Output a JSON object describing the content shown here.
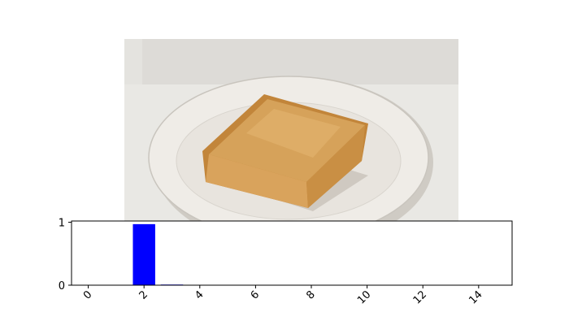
{
  "image": {
    "subject": "toast-on-plate-photo",
    "colors": {
      "background": "#e6e4e0",
      "box": "#dcdad6",
      "plate": "#eeebe6",
      "plate_rim": "#c8c4bd",
      "toast_crust": "#c98e3d",
      "toast_top": "#d9a55a"
    }
  },
  "chart_data": {
    "type": "bar",
    "x": [
      0,
      1,
      2,
      3,
      4,
      5,
      6,
      7,
      8,
      9,
      10,
      11,
      12,
      13,
      14
    ],
    "values": [
      0,
      0,
      0.97,
      0.01,
      0,
      0,
      0,
      0,
      0,
      0,
      0,
      0,
      0,
      0,
      0
    ],
    "bar_color": "#0000ff",
    "xlim": [
      -0.6,
      15.2
    ],
    "ylim": [
      0,
      1.02
    ],
    "xticks": [
      0,
      2,
      4,
      6,
      8,
      10,
      12,
      14
    ],
    "xtick_labels": [
      "0",
      "2",
      "4",
      "6",
      "8",
      "10",
      "12",
      "14"
    ],
    "yticks": [
      0,
      1
    ],
    "ytick_labels": [
      "0",
      "1"
    ],
    "xtick_rotation": 45,
    "grid": false,
    "title": "",
    "xlabel": "",
    "ylabel": ""
  }
}
